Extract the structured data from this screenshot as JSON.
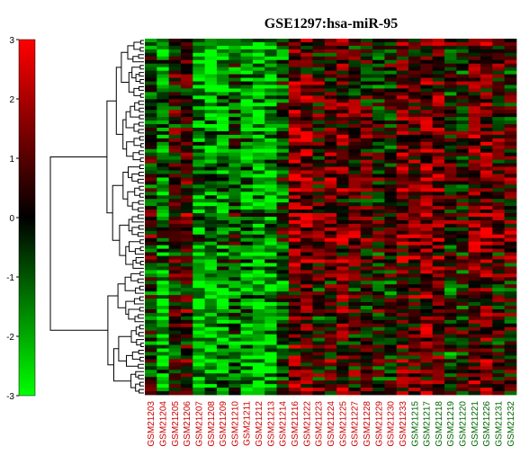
{
  "chart_data": {
    "type": "heatmap",
    "title": "GSE1297:hsa-miR-95",
    "colorbar": {
      "ticks": [
        "3",
        "2",
        "1",
        "0",
        "-1",
        "-2",
        "-3"
      ],
      "tick_values": [
        3,
        2,
        1,
        0,
        -1,
        -2,
        -3
      ],
      "range": [
        -3,
        3
      ],
      "colors": [
        "#00ff00",
        "#000000",
        "#ff0000"
      ]
    },
    "group_colors": {
      "a": "#cc0000",
      "b": "#006600"
    },
    "samples": [
      {
        "name": "GSM21203",
        "group": "a"
      },
      {
        "name": "GSM21204",
        "group": "a"
      },
      {
        "name": "GSM21205",
        "group": "a"
      },
      {
        "name": "GSM21206",
        "group": "a"
      },
      {
        "name": "GSM21207",
        "group": "a"
      },
      {
        "name": "GSM21208",
        "group": "a"
      },
      {
        "name": "GSM21209",
        "group": "a"
      },
      {
        "name": "GSM21210",
        "group": "a"
      },
      {
        "name": "GSM21211",
        "group": "a"
      },
      {
        "name": "GSM21212",
        "group": "a"
      },
      {
        "name": "GSM21213",
        "group": "a"
      },
      {
        "name": "GSM21214",
        "group": "a"
      },
      {
        "name": "GSM21216",
        "group": "a"
      },
      {
        "name": "GSM21222",
        "group": "a"
      },
      {
        "name": "GSM21223",
        "group": "a"
      },
      {
        "name": "GSM21224",
        "group": "a"
      },
      {
        "name": "GSM21225",
        "group": "a"
      },
      {
        "name": "GSM21227",
        "group": "a"
      },
      {
        "name": "GSM21228",
        "group": "a"
      },
      {
        "name": "GSM21229",
        "group": "a"
      },
      {
        "name": "GSM21230",
        "group": "a"
      },
      {
        "name": "GSM21233",
        "group": "a"
      },
      {
        "name": "GSM21215",
        "group": "b"
      },
      {
        "name": "GSM21217",
        "group": "b"
      },
      {
        "name": "GSM21218",
        "group": "b"
      },
      {
        "name": "GSM21219",
        "group": "b"
      },
      {
        "name": "GSM21220",
        "group": "b"
      },
      {
        "name": "GSM21221",
        "group": "b"
      },
      {
        "name": "GSM21226",
        "group": "b"
      },
      {
        "name": "GSM21231",
        "group": "b"
      },
      {
        "name": "GSM21232",
        "group": "b"
      }
    ],
    "n_rows": 100,
    "column_bias": [
      -0.3,
      -1.9,
      0.1,
      0.7,
      -2.2,
      -2.4,
      -2.0,
      -1.1,
      -1.8,
      -2.5,
      -2.4,
      -0.9,
      1.6,
      1.3,
      0.5,
      0.8,
      1.0,
      0.6,
      0.3,
      0.0,
      -0.2,
      1.1,
      0.9,
      1.4,
      1.2,
      0.0,
      0.1,
      1.3,
      1.5,
      0.4,
      0.2
    ],
    "row_block_bias": [
      {
        "from": 0,
        "to": 20,
        "bias": 0.0
      },
      {
        "from": 20,
        "to": 65,
        "bias": 0.4
      },
      {
        "from": 65,
        "to": 100,
        "bias": -0.2
      }
    ],
    "grid": false,
    "legend": "left"
  }
}
